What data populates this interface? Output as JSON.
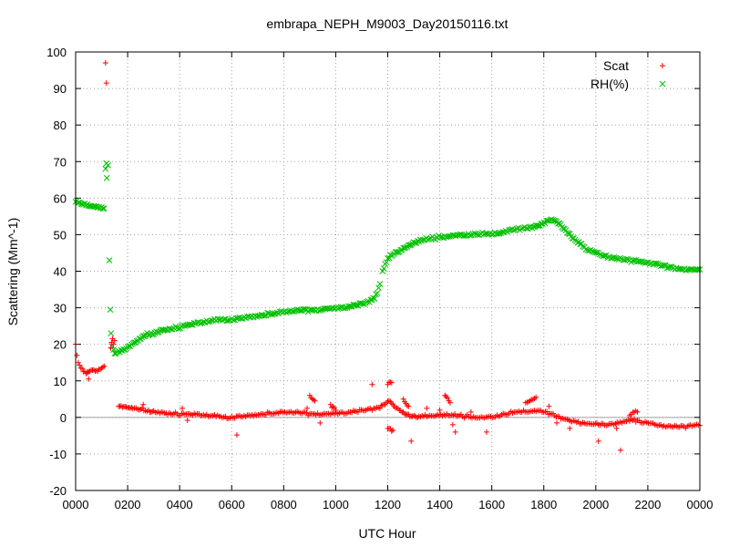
{
  "chart_data": {
    "type": "scatter",
    "title": "embrapa_NEPH_M9003_Day20150116.txt",
    "xlabel": "UTC Hour",
    "ylabel": "Scattering (Mm^-1)",
    "xlim": [
      0,
      24
    ],
    "ylim": [
      -20,
      100
    ],
    "x_ticks": [
      0,
      2,
      4,
      6,
      8,
      10,
      12,
      14,
      16,
      18,
      20,
      22,
      24
    ],
    "x_tick_labels": [
      "0000",
      "0200",
      "0400",
      "0600",
      "0800",
      "1000",
      "1200",
      "1400",
      "1600",
      "1800",
      "2000",
      "2200",
      "0000"
    ],
    "y_ticks": [
      -20,
      -10,
      0,
      10,
      20,
      30,
      40,
      50,
      60,
      70,
      80,
      90,
      100
    ],
    "y_tick_labels": [
      "-20",
      "-10",
      "0",
      "10",
      "20",
      "30",
      "40",
      "50",
      "60",
      "70",
      "80",
      "90",
      "100"
    ],
    "grid": true,
    "zero_line": true,
    "legend_position": "top-right",
    "series": [
      {
        "name": "Scat",
        "marker": "plus",
        "color": "#ff0000",
        "points": [
          [
            0.0,
            20.0
          ],
          [
            0.05,
            17.0
          ],
          [
            0.1,
            15.0
          ],
          [
            0.2,
            13.5
          ],
          [
            0.3,
            12.5
          ],
          [
            0.4,
            12.0
          ],
          [
            0.5,
            12.5
          ],
          [
            0.6,
            13.0
          ],
          [
            0.7,
            13.0
          ],
          [
            0.8,
            12.8
          ],
          [
            0.9,
            13.2
          ],
          [
            1.0,
            13.5
          ],
          [
            1.05,
            13.8
          ],
          [
            1.1,
            14.0
          ],
          [
            0.5,
            10.5
          ],
          [
            0.45,
            12.5
          ],
          [
            1.15,
            97.0
          ],
          [
            1.18,
            91.5
          ],
          [
            1.35,
            19.0
          ],
          [
            1.38,
            20.5
          ],
          [
            1.42,
            21.5
          ],
          [
            1.5,
            21.0
          ],
          [
            1.45,
            20.0
          ],
          [
            1.65,
            3.0
          ],
          [
            1.8,
            2.8
          ],
          [
            2.0,
            2.6
          ],
          [
            2.2,
            2.4
          ],
          [
            2.5,
            2.2
          ],
          [
            2.8,
            2.0
          ],
          [
            3.0,
            1.8
          ],
          [
            3.3,
            1.5
          ],
          [
            3.6,
            1.2
          ],
          [
            3.9,
            1.0
          ],
          [
            4.2,
            0.8
          ],
          [
            4.5,
            0.6
          ],
          [
            4.8,
            0.5
          ],
          [
            5.1,
            0.3
          ],
          [
            5.4,
            0.2
          ],
          [
            5.7,
            0.1
          ],
          [
            6.0,
            0.2
          ],
          [
            6.3,
            0.5
          ],
          [
            6.6,
            0.6
          ],
          [
            6.9,
            0.8
          ],
          [
            7.2,
            0.9
          ],
          [
            7.5,
            1.0
          ],
          [
            7.8,
            1.1
          ],
          [
            8.1,
            1.2
          ],
          [
            8.4,
            1.2
          ],
          [
            8.7,
            1.1
          ],
          [
            9.0,
            1.0
          ],
          [
            9.3,
            1.1
          ],
          [
            9.6,
            1.0
          ],
          [
            9.9,
            1.2
          ],
          [
            10.2,
            1.4
          ],
          [
            10.5,
            1.5
          ],
          [
            10.8,
            1.6
          ],
          [
            11.1,
            1.8
          ],
          [
            11.4,
            2.0
          ],
          [
            11.7,
            2.5
          ],
          [
            11.9,
            3.5
          ],
          [
            12.05,
            4.5
          ],
          [
            12.2,
            3.5
          ],
          [
            12.4,
            2.5
          ],
          [
            12.6,
            1.5
          ],
          [
            12.8,
            0.8
          ],
          [
            13.0,
            0.5
          ],
          [
            13.2,
            0.3
          ],
          [
            13.5,
            0.2
          ],
          [
            13.8,
            0.3
          ],
          [
            14.1,
            0.4
          ],
          [
            14.4,
            0.5
          ],
          [
            14.7,
            0.4
          ],
          [
            15.0,
            0.3
          ],
          [
            15.3,
            0.2
          ],
          [
            15.6,
            0.1
          ],
          [
            15.9,
            0.3
          ],
          [
            16.2,
            0.6
          ],
          [
            16.5,
            0.9
          ],
          [
            16.8,
            1.2
          ],
          [
            17.1,
            1.4
          ],
          [
            17.4,
            1.5
          ],
          [
            17.7,
            1.6
          ],
          [
            18.0,
            1.4
          ],
          [
            18.3,
            1.0
          ],
          [
            18.6,
            0.2
          ],
          [
            18.9,
            -0.5
          ],
          [
            19.2,
            -1.0
          ],
          [
            19.5,
            -1.4
          ],
          [
            19.8,
            -1.8
          ],
          [
            20.1,
            -2.0
          ],
          [
            20.4,
            -2.2
          ],
          [
            20.7,
            -2.0
          ],
          [
            21.0,
            -1.5
          ],
          [
            21.3,
            -1.0
          ],
          [
            21.6,
            -0.8
          ],
          [
            21.9,
            -1.2
          ],
          [
            22.2,
            -1.6
          ],
          [
            22.5,
            -2.0
          ],
          [
            22.8,
            -2.3
          ],
          [
            23.1,
            -2.4
          ],
          [
            23.4,
            -2.5
          ],
          [
            23.7,
            -2.4
          ],
          [
            24.0,
            -2.2
          ],
          [
            2.6,
            3.5
          ],
          [
            4.1,
            2.5
          ],
          [
            4.3,
            -0.8
          ],
          [
            6.2,
            -4.8
          ],
          [
            8.9,
            2.5
          ],
          [
            9.0,
            6.0
          ],
          [
            9.2,
            4.5
          ],
          [
            9.4,
            -1.5
          ],
          [
            9.8,
            3.5
          ],
          [
            10.0,
            2.0
          ],
          [
            11.4,
            9.0
          ],
          [
            12.0,
            9.0
          ],
          [
            12.15,
            9.5
          ],
          [
            12.0,
            -3.0
          ],
          [
            12.2,
            -3.5
          ],
          [
            12.6,
            5.0
          ],
          [
            12.8,
            3.0
          ],
          [
            12.9,
            -6.5
          ],
          [
            13.5,
            2.5
          ],
          [
            14.0,
            2.0
          ],
          [
            14.2,
            6.0
          ],
          [
            14.4,
            4.0
          ],
          [
            14.6,
            -4.0
          ],
          [
            14.5,
            -2.0
          ],
          [
            15.2,
            1.5
          ],
          [
            15.8,
            -4.0
          ],
          [
            17.3,
            4.0
          ],
          [
            17.7,
            5.5
          ],
          [
            18.2,
            3.0
          ],
          [
            18.5,
            -1.5
          ],
          [
            19.0,
            -3.0
          ],
          [
            20.1,
            -6.5
          ],
          [
            20.8,
            -3.0
          ],
          [
            20.95,
            -9.0
          ],
          [
            21.3,
            0.5
          ],
          [
            21.6,
            1.5
          ]
        ]
      },
      {
        "name": "RH(%)",
        "marker": "cross",
        "color": "#00c000",
        "points": [
          [
            0.0,
            59.0
          ],
          [
            0.1,
            58.8
          ],
          [
            0.2,
            58.5
          ],
          [
            0.3,
            58.2
          ],
          [
            0.4,
            58.0
          ],
          [
            0.5,
            57.9
          ],
          [
            0.6,
            57.8
          ],
          [
            0.7,
            57.8
          ],
          [
            0.8,
            57.7
          ],
          [
            0.9,
            57.6
          ],
          [
            1.0,
            57.5
          ],
          [
            1.1,
            57.2
          ],
          [
            1.15,
            68.0
          ],
          [
            1.18,
            69.5
          ],
          [
            1.2,
            65.5
          ],
          [
            1.25,
            69.0
          ],
          [
            1.3,
            43.0
          ],
          [
            1.33,
            29.5
          ],
          [
            1.36,
            23.0
          ],
          [
            1.4,
            19.5
          ],
          [
            1.45,
            18.5
          ],
          [
            1.5,
            17.5
          ],
          [
            1.7,
            17.8
          ],
          [
            1.9,
            18.5
          ],
          [
            2.1,
            19.5
          ],
          [
            2.3,
            20.5
          ],
          [
            2.5,
            21.5
          ],
          [
            2.7,
            22.5
          ],
          [
            2.9,
            23.0
          ],
          [
            3.1,
            23.5
          ],
          [
            3.3,
            24.0
          ],
          [
            3.6,
            24.3
          ],
          [
            3.9,
            24.6
          ],
          [
            4.2,
            25.0
          ],
          [
            4.5,
            25.3
          ],
          [
            4.8,
            25.7
          ],
          [
            5.1,
            26.1
          ],
          [
            5.4,
            26.5
          ],
          [
            5.7,
            26.8
          ],
          [
            6.0,
            27.0
          ],
          [
            6.3,
            27.3
          ],
          [
            6.6,
            27.6
          ],
          [
            6.9,
            27.8
          ],
          [
            7.2,
            28.0
          ],
          [
            7.5,
            28.2
          ],
          [
            7.8,
            28.5
          ],
          [
            8.1,
            28.7
          ],
          [
            8.4,
            29.0
          ],
          [
            8.7,
            29.2
          ],
          [
            9.0,
            29.4
          ],
          [
            9.3,
            29.6
          ],
          [
            9.6,
            29.8
          ],
          [
            9.9,
            30.0
          ],
          [
            10.2,
            30.2
          ],
          [
            10.5,
            30.4
          ],
          [
            10.8,
            30.7
          ],
          [
            11.1,
            31.0
          ],
          [
            11.3,
            31.5
          ],
          [
            11.5,
            32.5
          ],
          [
            11.6,
            34.0
          ],
          [
            11.7,
            36.5
          ],
          [
            11.8,
            40.0
          ],
          [
            11.9,
            42.0
          ],
          [
            12.0,
            43.5
          ],
          [
            12.1,
            44.5
          ],
          [
            12.3,
            45.2
          ],
          [
            12.5,
            45.8
          ],
          [
            12.7,
            46.5
          ],
          [
            12.9,
            47.2
          ],
          [
            13.1,
            47.8
          ],
          [
            13.3,
            48.3
          ],
          [
            13.6,
            48.8
          ],
          [
            13.9,
            49.2
          ],
          [
            14.2,
            49.6
          ],
          [
            14.5,
            49.9
          ],
          [
            14.8,
            50.1
          ],
          [
            15.1,
            50.2
          ],
          [
            15.4,
            50.2
          ],
          [
            15.7,
            50.1
          ],
          [
            16.0,
            50.0
          ],
          [
            16.3,
            50.3
          ],
          [
            16.6,
            50.8
          ],
          [
            16.9,
            51.3
          ],
          [
            17.2,
            51.8
          ],
          [
            17.5,
            52.2
          ],
          [
            17.7,
            52.5
          ],
          [
            17.9,
            53.0
          ],
          [
            18.1,
            53.8
          ],
          [
            18.3,
            54.2
          ],
          [
            18.5,
            53.5
          ],
          [
            18.7,
            52.0
          ],
          [
            18.9,
            50.5
          ],
          [
            19.1,
            49.0
          ],
          [
            19.3,
            47.8
          ],
          [
            19.5,
            46.8
          ],
          [
            19.8,
            45.8
          ],
          [
            20.1,
            45.0
          ],
          [
            20.4,
            44.3
          ],
          [
            20.7,
            43.8
          ],
          [
            21.0,
            43.4
          ],
          [
            21.3,
            43.0
          ],
          [
            21.6,
            42.6
          ],
          [
            21.9,
            42.2
          ],
          [
            22.2,
            41.8
          ],
          [
            22.5,
            41.4
          ],
          [
            22.8,
            41.1
          ],
          [
            23.1,
            40.9
          ],
          [
            23.4,
            40.7
          ],
          [
            23.7,
            40.6
          ],
          [
            24.0,
            40.5
          ]
        ]
      }
    ]
  }
}
